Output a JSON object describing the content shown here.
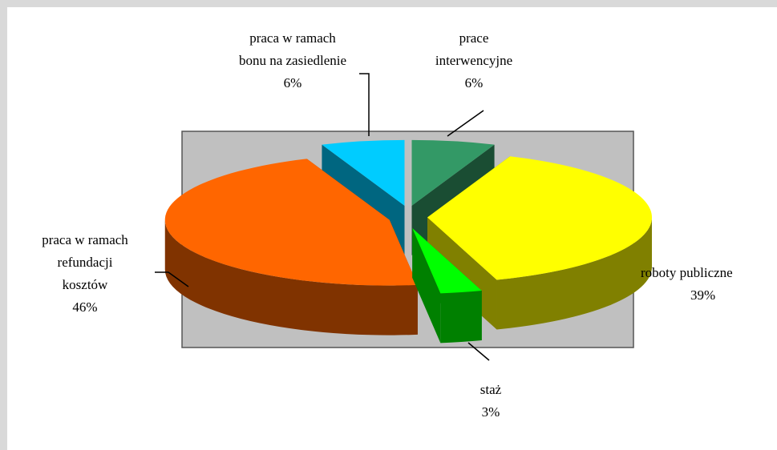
{
  "chart_data": {
    "type": "pie3d",
    "categories": [
      "prace interwencyjne",
      "roboty publiczne",
      "staż",
      "praca w ramach refundacji kosztów",
      "praca w ramach bonu na zasiedlenie"
    ],
    "values": [
      6,
      39,
      3,
      46,
      6
    ],
    "value_labels": [
      "6%",
      "39%",
      "3%",
      "46%",
      "6%"
    ],
    "colors": [
      "#339966",
      "#ffff00",
      "#00ff00",
      "#ff6600",
      "#00ccff"
    ]
  }
}
